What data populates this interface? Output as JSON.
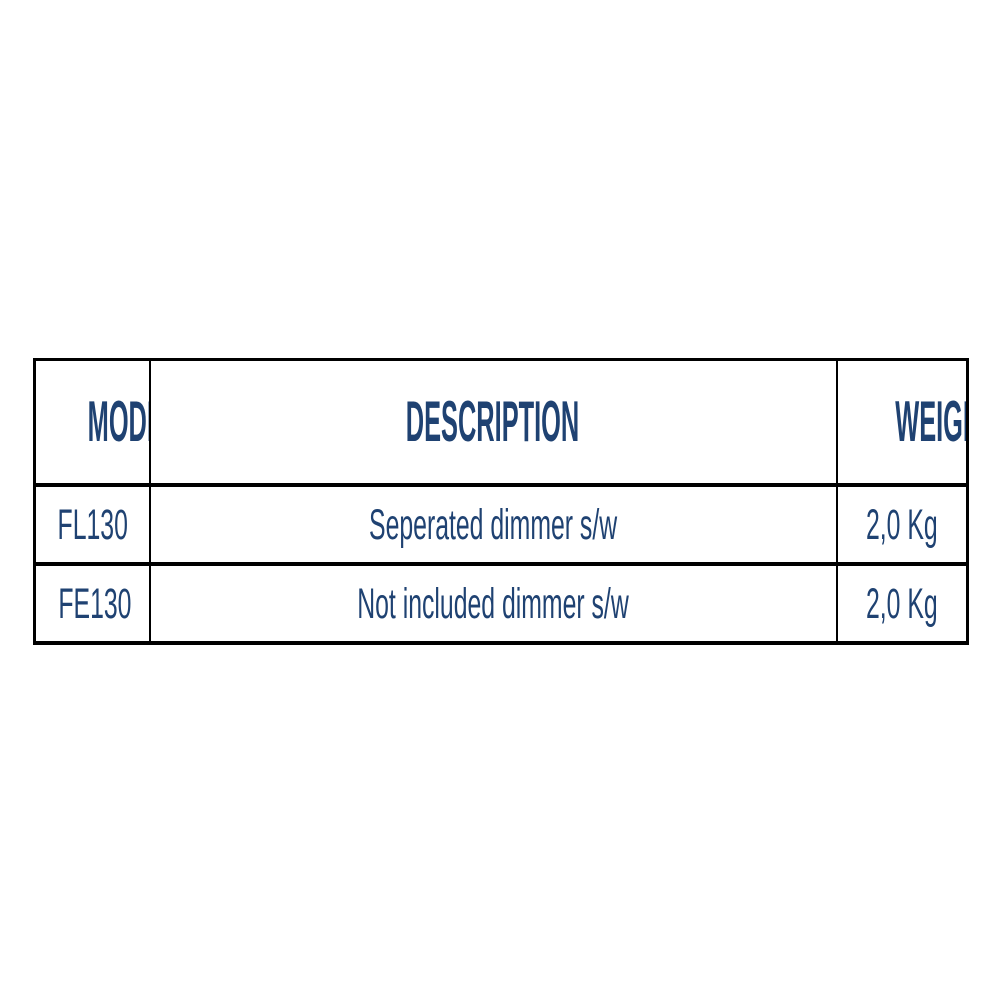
{
  "page": {
    "background_color": "#FFFFFF"
  },
  "table": {
    "colors": {
      "text": "#1F4272",
      "border": "#000000",
      "background": "#FFFFFF"
    },
    "columns": [
      {
        "key": "model",
        "label": "MODEL"
      },
      {
        "key": "description",
        "label": "DESCRIPTION"
      },
      {
        "key": "weight",
        "label": "WEIGHT"
      }
    ],
    "rows": [
      {
        "model": "FL130",
        "description": "Seperated dimmer s/w",
        "weight": "2,0 Kg"
      },
      {
        "model": "FE130",
        "description": "Not included dimmer s/w",
        "weight": "2,0 Kg"
      }
    ]
  }
}
